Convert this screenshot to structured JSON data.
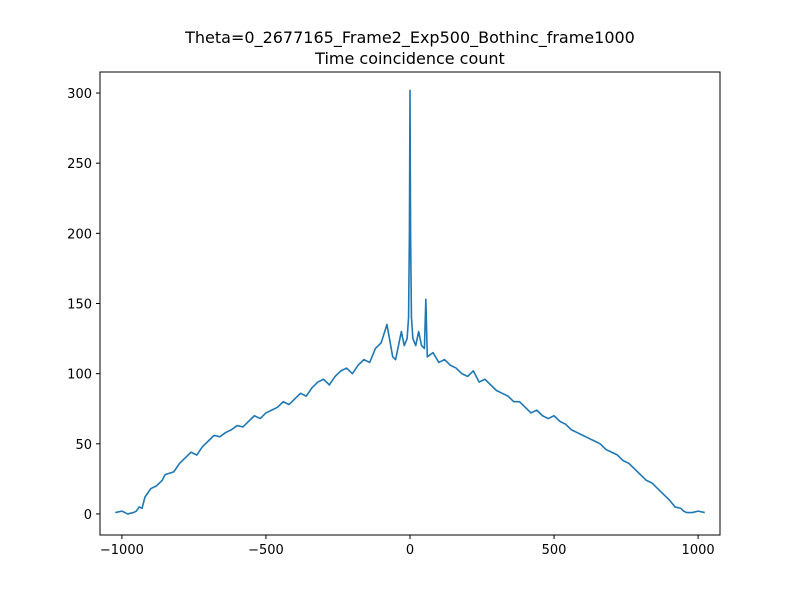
{
  "chart_data": {
    "type": "line",
    "title": "Theta=0_2677165_Frame2_Exp500_Bothinc_frame1000",
    "subtitle": "Time coincidence count",
    "xlabel": "",
    "ylabel": "",
    "xlim": [
      -1076,
      1076
    ],
    "ylim": [
      -15,
      315
    ],
    "xticks": [
      -1000,
      -500,
      0,
      500,
      1000
    ],
    "xtick_labels": [
      "−1000",
      "−500",
      "0",
      "500",
      "1000"
    ],
    "yticks": [
      0,
      50,
      100,
      150,
      200,
      250,
      300
    ],
    "ytick_labels": [
      "0",
      "50",
      "100",
      "150",
      "200",
      "250",
      "300"
    ],
    "grid": false,
    "line_color": "#1f77b4",
    "series": [
      {
        "x": [
          -1023,
          -1000,
          -980,
          -960,
          -950,
          -940,
          -930,
          -920,
          -900,
          -880,
          -860,
          -850,
          -820,
          -800,
          -780,
          -760,
          -740,
          -720,
          -700,
          -680,
          -660,
          -640,
          -620,
          -600,
          -580,
          -560,
          -540,
          -520,
          -500,
          -480,
          -460,
          -440,
          -420,
          -400,
          -380,
          -360,
          -340,
          -320,
          -300,
          -280,
          -260,
          -250,
          -240,
          -220,
          -200,
          -180,
          -160,
          -140,
          -120,
          -100,
          -80,
          -60,
          -50,
          -40,
          -30,
          -20,
          -10,
          -5,
          -2,
          0,
          2,
          5,
          10,
          20,
          30,
          40,
          50,
          55,
          60,
          80,
          100,
          120,
          140,
          160,
          180,
          200,
          220,
          240,
          260,
          280,
          300,
          320,
          340,
          360,
          380,
          400,
          420,
          440,
          460,
          480,
          500,
          520,
          540,
          560,
          580,
          600,
          620,
          640,
          660,
          680,
          700,
          720,
          740,
          760,
          780,
          800,
          820,
          840,
          860,
          880,
          900,
          920,
          940,
          950,
          960,
          980,
          1000,
          1023
        ],
        "y": [
          1,
          2,
          0,
          1,
          2,
          5,
          4,
          12,
          18,
          20,
          24,
          28,
          30,
          36,
          40,
          44,
          42,
          48,
          52,
          56,
          55,
          58,
          60,
          63,
          62,
          66,
          70,
          68,
          72,
          74,
          76,
          80,
          78,
          82,
          86,
          84,
          90,
          94,
          96,
          92,
          98,
          100,
          102,
          104,
          100,
          106,
          110,
          108,
          118,
          122,
          135,
          112,
          110,
          120,
          130,
          120,
          125,
          140,
          200,
          302,
          200,
          140,
          125,
          120,
          130,
          120,
          118,
          153,
          112,
          115,
          108,
          110,
          106,
          104,
          100,
          98,
          102,
          94,
          96,
          92,
          88,
          86,
          84,
          80,
          80,
          76,
          72,
          74,
          70,
          68,
          70,
          66,
          64,
          60,
          58,
          56,
          54,
          52,
          50,
          46,
          44,
          42,
          38,
          36,
          32,
          28,
          24,
          22,
          18,
          14,
          10,
          5,
          4,
          2,
          1,
          1,
          2,
          1
        ]
      }
    ]
  }
}
